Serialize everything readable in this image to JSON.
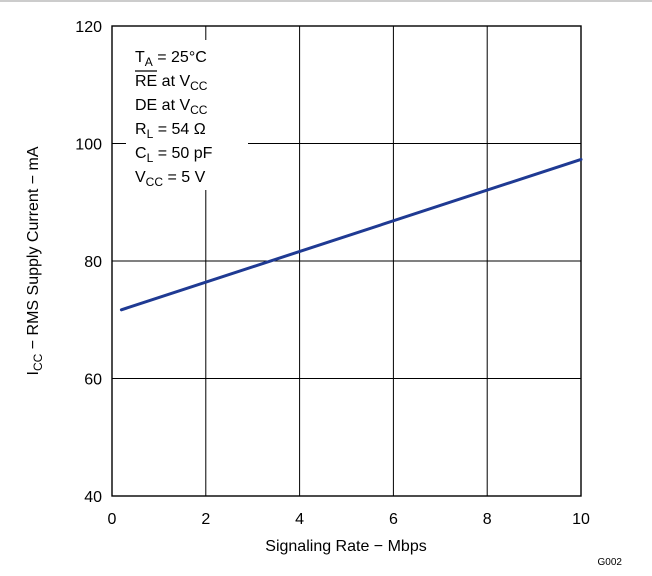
{
  "chart_data": {
    "type": "line",
    "xlabel": "Signaling Rate − Mbps",
    "ylabel": "I_CC − RMS Supply Current − mA",
    "ylabel_parts": {
      "main": "I",
      "sub": "CC",
      "rest": " − RMS Supply Current − mA"
    },
    "xlim": [
      0,
      10
    ],
    "ylim": [
      40,
      120
    ],
    "x_ticks": [
      0,
      2,
      4,
      6,
      8,
      10
    ],
    "y_ticks": [
      40,
      60,
      80,
      100,
      120
    ],
    "x_tick_labels": [
      "0",
      "2",
      "4",
      "6",
      "8",
      "10"
    ],
    "y_tick_labels": [
      "40",
      "60",
      "80",
      "100",
      "120"
    ],
    "grid": true,
    "series": [
      {
        "color": "#1f3a93",
        "x": [
          0.2,
          10
        ],
        "y": [
          71.7,
          97.3
        ]
      }
    ],
    "conditions": [
      {
        "main": "T",
        "sub": "A",
        "rest": " = 25°C",
        "overline": false
      },
      {
        "main": "RE",
        "sub": "",
        "rest": " at V",
        "sub2": "CC",
        "overline": true
      },
      {
        "main": "DE at V",
        "sub": "CC",
        "rest": "",
        "overline": false
      },
      {
        "main": "R",
        "sub": "L",
        "rest": " = 54 Ω",
        "overline": false
      },
      {
        "main": "C",
        "sub": "L",
        "rest": " = 50 pF",
        "overline": false
      },
      {
        "main": "V",
        "sub": "CC",
        "rest": " = 5 V",
        "overline": false
      }
    ],
    "figure_id": "G002"
  }
}
